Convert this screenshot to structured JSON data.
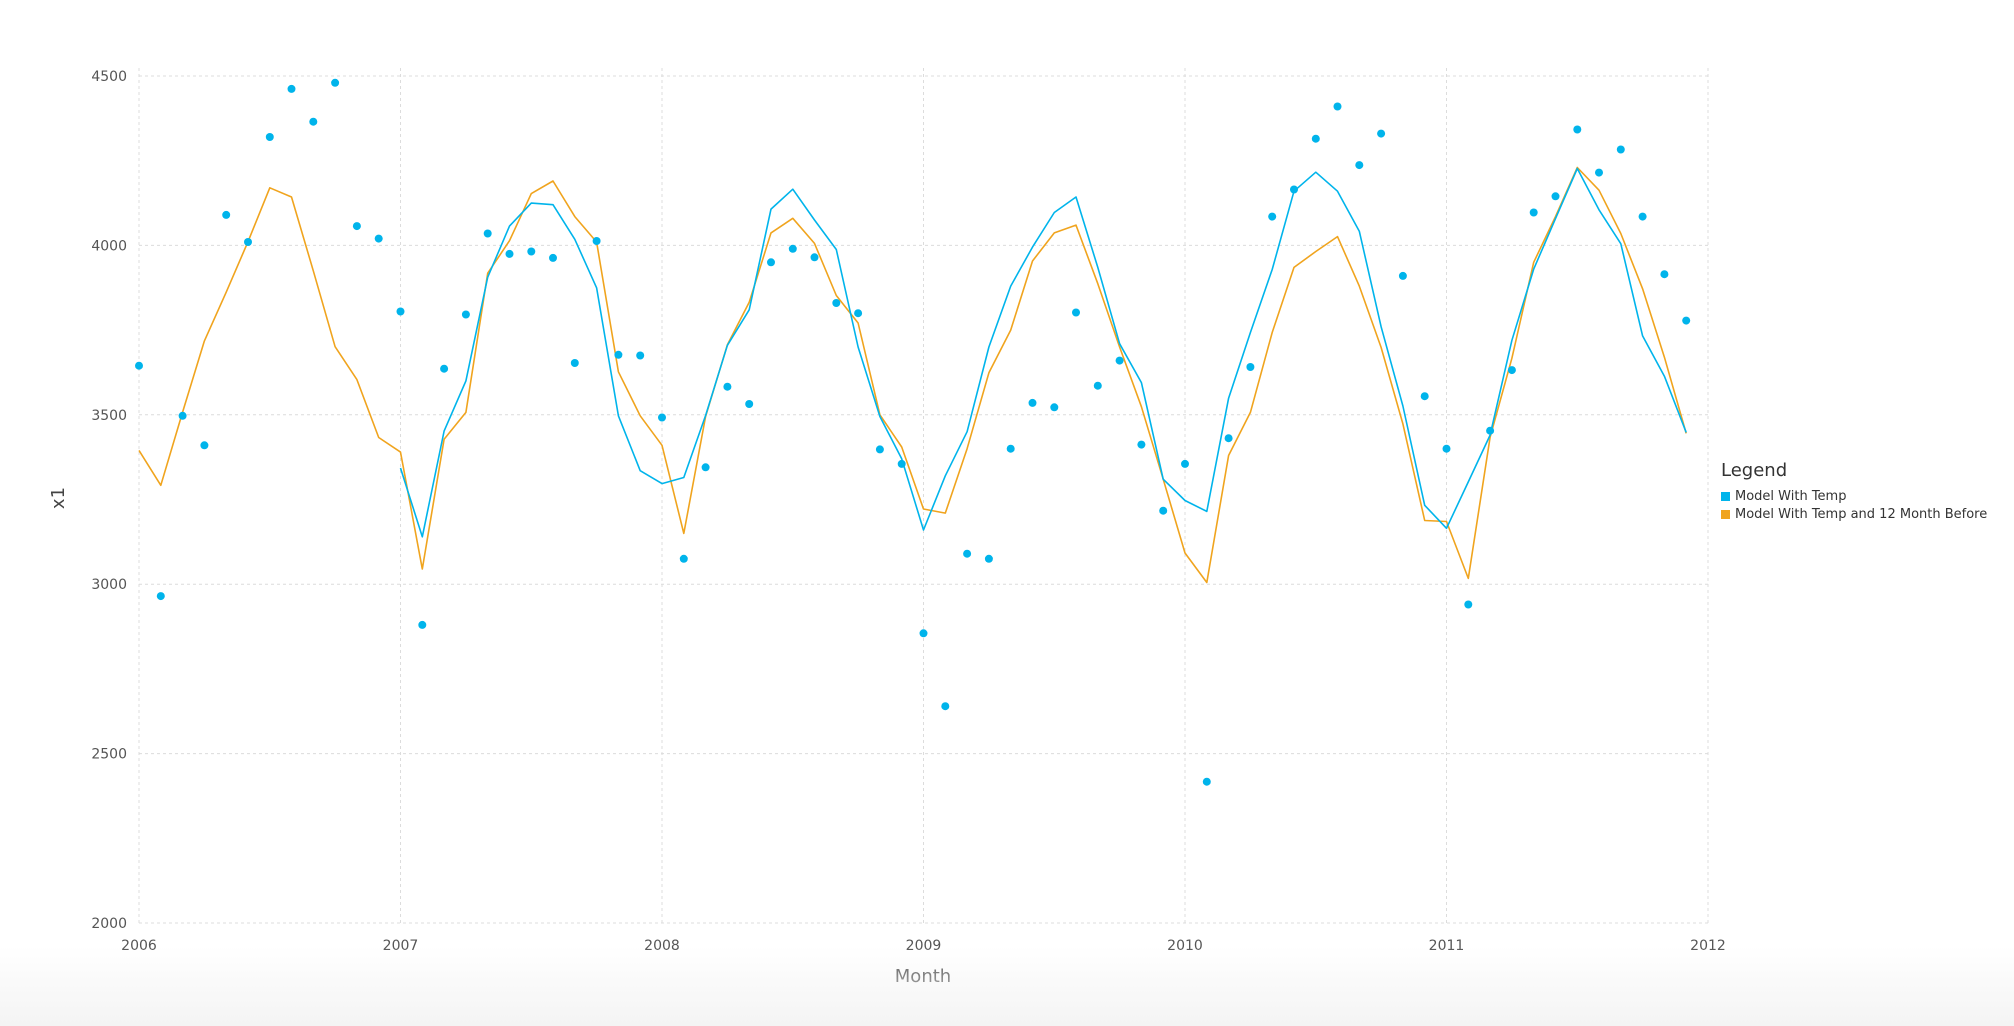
{
  "chart_data": {
    "type": "line",
    "xlabel": "Month",
    "ylabel": "x1",
    "ylim": [
      2000,
      4500
    ],
    "y_ticks": [
      2000,
      2500,
      3000,
      3500,
      4000,
      4500
    ],
    "x_range": [
      "2006-01",
      "2012-01"
    ],
    "x_ticks": [
      "2006",
      "2007",
      "2008",
      "2009",
      "2010",
      "2011",
      "2012"
    ],
    "grid": true,
    "legend": {
      "title": "Legend",
      "placement": "right",
      "entries": [
        "Model With Temp",
        "Model With Temp and 12 Month Before"
      ]
    },
    "x": [
      "2006-01",
      "2006-02",
      "2006-03",
      "2006-04",
      "2006-05",
      "2006-06",
      "2006-07",
      "2006-08",
      "2006-09",
      "2006-10",
      "2006-11",
      "2006-12",
      "2007-01",
      "2007-02",
      "2007-03",
      "2007-04",
      "2007-05",
      "2007-06",
      "2007-07",
      "2007-08",
      "2007-09",
      "2007-10",
      "2007-11",
      "2007-12",
      "2008-01",
      "2008-02",
      "2008-03",
      "2008-04",
      "2008-05",
      "2008-06",
      "2008-07",
      "2008-08",
      "2008-09",
      "2008-10",
      "2008-11",
      "2008-12",
      "2009-01",
      "2009-02",
      "2009-03",
      "2009-04",
      "2009-05",
      "2009-06",
      "2009-07",
      "2009-08",
      "2009-09",
      "2009-10",
      "2009-11",
      "2009-12",
      "2010-01",
      "2010-02",
      "2010-03",
      "2010-04",
      "2010-05",
      "2010-06",
      "2010-07",
      "2010-08",
      "2010-09",
      "2010-10",
      "2010-11",
      "2010-12",
      "2011-01",
      "2011-02",
      "2011-03",
      "2011-04",
      "2011-05",
      "2011-06",
      "2011-07",
      "2011-08",
      "2011-09",
      "2011-10",
      "2011-11",
      "2011-12"
    ],
    "observed": {
      "color": "#00b4eb",
      "values": [
        3645,
        2965,
        3497,
        3410,
        4090,
        4010,
        4320,
        4462,
        4365,
        4480,
        4057,
        4020,
        3805,
        2880,
        3636,
        3796,
        4035,
        3975,
        3982,
        3963,
        3653,
        4013,
        3677,
        3675,
        3492,
        3075,
        3345,
        3583,
        3532,
        3950,
        3990,
        3965,
        3830,
        3800,
        3398,
        3355,
        2855,
        2640,
        3090,
        3075,
        3400,
        3535,
        3522,
        3802,
        3586,
        3660,
        3412,
        3217,
        3355,
        2417,
        3431,
        3641,
        4085,
        4165,
        4315,
        4410,
        4237,
        4330,
        3910,
        3555,
        3400,
        2940,
        3453,
        3632,
        4097,
        4145,
        4342,
        4215,
        4283,
        4085,
        3915,
        3778
      ]
    },
    "series": [
      {
        "name": "Model With Temp",
        "color": "#00b4eb",
        "values": [
          null,
          null,
          null,
          null,
          null,
          null,
          null,
          null,
          null,
          null,
          null,
          null,
          3343,
          3140,
          3452,
          3600,
          3906,
          4057,
          4125,
          4120,
          4018,
          3875,
          3497,
          3335,
          3297,
          3315,
          3498,
          3705,
          3810,
          4107,
          4166,
          4075,
          3988,
          3700,
          3495,
          3370,
          3160,
          3320,
          3450,
          3700,
          3880,
          3995,
          4097,
          4143,
          3935,
          3710,
          3595,
          3310,
          3247,
          3215,
          3549,
          3743,
          3929,
          4160,
          4216,
          4160,
          4042,
          3760,
          3526,
          3233,
          3165,
          3302,
          3440,
          3720,
          3930,
          4079,
          4227,
          4105,
          4005,
          3733,
          3614,
          3448
        ]
      },
      {
        "name": "Model With Temp and 12 Month Before",
        "color": "#f0a41e",
        "values": [
          3395,
          3292,
          3508,
          3718,
          3862,
          4011,
          4170,
          4143,
          3925,
          3701,
          3604,
          3433,
          3390,
          3045,
          3428,
          3507,
          3918,
          4014,
          4153,
          4190,
          4085,
          4010,
          3627,
          3497,
          3410,
          3150,
          3495,
          3707,
          3832,
          4037,
          4080,
          4006,
          3852,
          3771,
          3500,
          3405,
          3222,
          3210,
          3400,
          3624,
          3750,
          3954,
          4037,
          4060,
          3887,
          3700,
          3524,
          3310,
          3092,
          3005,
          3380,
          3507,
          3743,
          3935,
          3982,
          4026,
          3880,
          3699,
          3473,
          3188,
          3185,
          3017,
          3434,
          3667,
          3950,
          4085,
          4230,
          4163,
          4035,
          3872,
          3670,
          3445
        ]
      }
    ]
  }
}
